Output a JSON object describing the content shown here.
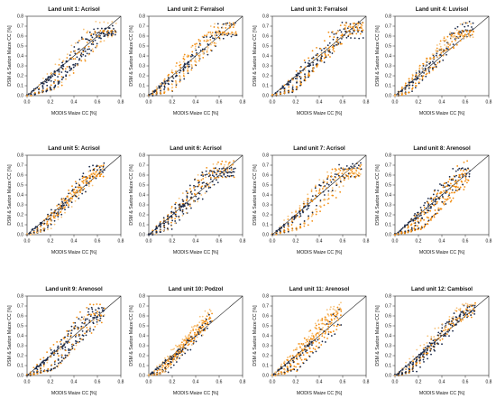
{
  "chart_data": [
    {
      "type": "scatter",
      "title": "Land unit 1: Acrisol",
      "xlabel": "MODIS Maize CC [%]",
      "ylabel": "DSM & Saxton Maize CC [%]",
      "x_ticks": [
        "0.0",
        "0.2",
        "0.4",
        "0.6",
        "0.8"
      ],
      "y_ticks": [
        "0.0",
        "0.1",
        "0.2",
        "0.3",
        "0.4",
        "0.5",
        "0.6",
        "0.7",
        "0.8"
      ],
      "xlim": [
        0,
        0.8
      ],
      "ylim": [
        0,
        0.8
      ],
      "reference_line": "1:1",
      "xmax": 0.72,
      "spread": 0.28,
      "seed": 11
    },
    {
      "type": "scatter",
      "title": "Land unit 2: Ferralsol",
      "xlabel": "MODIS Maize CC [%]",
      "ylabel": "DSM & Saxton Maize CC [%]",
      "x_ticks": [
        "0.0",
        "0.2",
        "0.4",
        "0.6",
        "0.8"
      ],
      "y_ticks": [
        "0.0",
        "0.1",
        "0.2",
        "0.3",
        "0.4",
        "0.5",
        "0.6",
        "0.7",
        "0.8"
      ],
      "xlim": [
        0,
        0.8
      ],
      "ylim": [
        0,
        0.8
      ],
      "reference_line": "1:1",
      "xmax": 0.72,
      "spread": 0.25,
      "seed": 23
    },
    {
      "type": "scatter",
      "title": "Land unit 3: Ferralsol",
      "xlabel": "MODIS Maize CC [%]",
      "ylabel": "DSM & Saxton Maize CC [%]",
      "x_ticks": [
        "0.0",
        "0.2",
        "0.4",
        "0.6",
        "0.8"
      ],
      "y_ticks": [
        "0.0",
        "0.1",
        "0.2",
        "0.3",
        "0.4",
        "0.5",
        "0.6",
        "0.7",
        "0.8"
      ],
      "xlim": [
        0,
        0.8
      ],
      "ylim": [
        0,
        0.8
      ],
      "reference_line": "1:1",
      "xmax": 0.74,
      "spread": 0.22,
      "seed": 37
    },
    {
      "type": "scatter",
      "title": "Land unit 4: Luvisol",
      "xlabel": "MODIS Maize CC [%]",
      "ylabel": "DSM & Saxton Maize CC [%]",
      "x_ticks": [
        "0.0",
        "0.2",
        "0.4",
        "0.6",
        "0.8"
      ],
      "y_ticks": [
        "0.0",
        "0.1",
        "0.2",
        "0.3",
        "0.4",
        "0.5",
        "0.6",
        "0.7",
        "0.8"
      ],
      "xlim": [
        0,
        0.8
      ],
      "ylim": [
        0,
        0.8
      ],
      "reference_line": "1:1",
      "xmax": 0.63,
      "spread": 0.15,
      "seed": 41
    },
    {
      "type": "scatter",
      "title": "Land unit 5: Acrisol",
      "xlabel": "MODIS Maize CC [%]",
      "ylabel": "DSM & Saxton Maize CC [%]",
      "x_ticks": [
        "0.0",
        "0.2",
        "0.4",
        "0.6",
        "0.8"
      ],
      "y_ticks": [
        "0.0",
        "0.1",
        "0.2",
        "0.3",
        "0.4",
        "0.5",
        "0.6",
        "0.7",
        "0.8"
      ],
      "xlim": [
        0,
        0.8
      ],
      "ylim": [
        0,
        0.8
      ],
      "reference_line": "1:1",
      "xmax": 0.62,
      "spread": 0.22,
      "seed": 53
    },
    {
      "type": "scatter",
      "title": "Land unit 6: Acrisol",
      "xlabel": "MODIS Maize CC [%]",
      "ylabel": "DSM & Saxton Maize CC [%]",
      "x_ticks": [
        "0.0",
        "0.2",
        "0.4",
        "0.6",
        "0.8"
      ],
      "y_ticks": [
        "0.0",
        "0.1",
        "0.2",
        "0.3",
        "0.4",
        "0.5",
        "0.6",
        "0.7",
        "0.8"
      ],
      "xlim": [
        0,
        0.8
      ],
      "ylim": [
        0,
        0.8
      ],
      "reference_line": "1:1",
      "xmax": 0.7,
      "spread": 0.2,
      "seed": 67
    },
    {
      "type": "scatter",
      "title": "Land unit 7: Acrisol",
      "xlabel": "MODIS Maize CC [%]",
      "ylabel": "DSM & Saxton Maize CC [%]",
      "x_ticks": [
        "0.0",
        "0.2",
        "0.4",
        "0.6",
        "0.8"
      ],
      "y_ticks": [
        "0.0",
        "0.1",
        "0.2",
        "0.3",
        "0.4",
        "0.5",
        "0.6",
        "0.7",
        "0.8"
      ],
      "xlim": [
        0,
        0.8
      ],
      "ylim": [
        0,
        0.8
      ],
      "reference_line": "1:1",
      "xmax": 0.72,
      "spread": 0.3,
      "seed": 71
    },
    {
      "type": "scatter",
      "title": "Land unit 8: Arenosol",
      "xlabel": "MODIS Maize CC [%]",
      "ylabel": "DSM & Saxton Maize CC [%]",
      "x_ticks": [
        "0.0",
        "0.2",
        "0.4",
        "0.6",
        "0.8"
      ],
      "y_ticks": [
        "0.0",
        "0.1",
        "0.2",
        "0.3",
        "0.4",
        "0.5",
        "0.6",
        "0.7",
        "0.8"
      ],
      "xlim": [
        0,
        0.8
      ],
      "ylim": [
        0,
        0.8
      ],
      "reference_line": "1:1",
      "xmax": 0.6,
      "spread": 0.3,
      "seed": 83
    },
    {
      "type": "scatter",
      "title": "Land unit 9: Arenosol",
      "xlabel": "MODIS Maize CC [%]",
      "ylabel": "DSM & Saxton Maize CC [%]",
      "x_ticks": [
        "0.0",
        "0.2",
        "0.4",
        "0.6",
        "0.8"
      ],
      "y_ticks": [
        "0.0",
        "0.1",
        "0.2",
        "0.3",
        "0.4",
        "0.5",
        "0.6",
        "0.7",
        "0.8"
      ],
      "xlim": [
        0,
        0.8
      ],
      "ylim": [
        0,
        0.8
      ],
      "reference_line": "1:1",
      "xmax": 0.62,
      "spread": 0.25,
      "seed": 97
    },
    {
      "type": "scatter",
      "title": "Land unit 10: Podzol",
      "xlabel": "MODIS Maize CC [%]",
      "ylabel": "DSM & Saxton Maize CC [%]",
      "x_ticks": [
        "0.0",
        "0.2",
        "0.4",
        "0.6",
        "0.8"
      ],
      "y_ticks": [
        "0.0",
        "0.1",
        "0.2",
        "0.3",
        "0.4",
        "0.5",
        "0.6",
        "0.7",
        "0.8"
      ],
      "xlim": [
        0,
        0.8
      ],
      "ylim": [
        0,
        0.8
      ],
      "reference_line": "1:1",
      "xmax": 0.5,
      "spread": 0.2,
      "seed": 101
    },
    {
      "type": "scatter",
      "title": "Land unit 11: Arenosol",
      "xlabel": "MODIS Maize CC [%]",
      "ylabel": "DSM & Saxton Maize CC [%]",
      "x_ticks": [
        "0.0",
        "0.2",
        "0.4",
        "0.6",
        "0.8"
      ],
      "y_ticks": [
        "0.0",
        "0.1",
        "0.2",
        "0.3",
        "0.4",
        "0.5",
        "0.6",
        "0.7",
        "0.8"
      ],
      "xlim": [
        0,
        0.8
      ],
      "ylim": [
        0,
        0.8
      ],
      "reference_line": "1:1",
      "xmax": 0.55,
      "spread": 0.25,
      "seed": 113
    },
    {
      "type": "scatter",
      "title": "Land unit 12: Cambisol",
      "xlabel": "MODIS Maize CC [%]",
      "ylabel": "DSM & Saxton Maize CC [%]",
      "x_ticks": [
        "0.0",
        "0.2",
        "0.4",
        "0.6",
        "0.8"
      ],
      "y_ticks": [
        "0.0",
        "0.1",
        "0.2",
        "0.3",
        "0.4",
        "0.5",
        "0.6",
        "0.7",
        "0.8"
      ],
      "xlim": [
        0,
        0.8
      ],
      "ylim": [
        0,
        0.8
      ],
      "reference_line": "1:1",
      "xmax": 0.65,
      "spread": 0.22,
      "seed": 127
    }
  ],
  "colors": {
    "points_dark": "#1b2a4a",
    "points_orange": "#f28c0f",
    "points_light": "#f7c27a",
    "axis": "#222222",
    "reference_line": "#222222"
  }
}
